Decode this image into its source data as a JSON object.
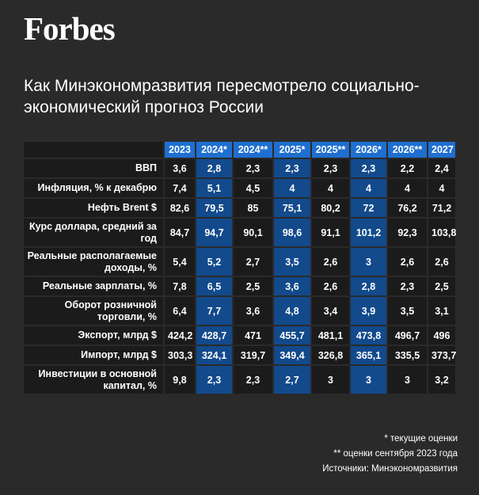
{
  "brand": {
    "logo": "Forbes"
  },
  "title": "Как Минэкономразвития пересмотрело социально-экономический прогноз России",
  "chart_data": {
    "type": "table",
    "columns": [
      "2023",
      "2024*",
      "2024**",
      "2025*",
      "2025**",
      "2026*",
      "2026**",
      "2027"
    ],
    "highlight_columns": [
      1,
      3,
      5
    ],
    "colors": {
      "header": "#1f6fd0",
      "highlight": "#124a8c",
      "cell": "#1b1b1b",
      "background": "#2a2a2a"
    },
    "rows": [
      {
        "label": "ВВП",
        "values": [
          "3,6",
          "2,8",
          "2,3",
          "2,3",
          "2,3",
          "2,3",
          "2,2",
          "2,4"
        ]
      },
      {
        "label": "Инфляция, % к декабрю",
        "values": [
          "7,4",
          "5,1",
          "4,5",
          "4",
          "4",
          "4",
          "4",
          "4"
        ]
      },
      {
        "label": "Нефть Brent $",
        "values": [
          "82,6",
          "79,5",
          "85",
          "75,1",
          "80,2",
          "72",
          "76,2",
          "71,2"
        ]
      },
      {
        "label": "Курс доллара, средний за год",
        "values": [
          "84,7",
          "94,7",
          "90,1",
          "98,6",
          "91,1",
          "101,2",
          "92,3",
          "103,8"
        ]
      },
      {
        "label": "Реальные располагаемые доходы, %",
        "values": [
          "5,4",
          "5,2",
          "2,7",
          "3,5",
          "2,6",
          "3",
          "2,6",
          "2,6"
        ]
      },
      {
        "label": "Реальные зарплаты, %",
        "values": [
          "7,8",
          "6,5",
          "2,5",
          "3,6",
          "2,6",
          "2,8",
          "2,3",
          "2,5"
        ]
      },
      {
        "label": "Оборот розничной торговли, %",
        "values": [
          "6,4",
          "7,7",
          "3,6",
          "4,8",
          "3,4",
          "3,9",
          "3,5",
          "3,1"
        ]
      },
      {
        "label": "Экспорт, млрд $",
        "values": [
          "424,2",
          "428,7",
          "471",
          "455,7",
          "481,1",
          "473,8",
          "496,7",
          "496"
        ]
      },
      {
        "label": "Импорт, млрд $",
        "values": [
          "303,3",
          "324,1",
          "319,7",
          "349,4",
          "326,8",
          "365,1",
          "335,5",
          "373,7"
        ]
      },
      {
        "label": "Инвестиции в основной капитал, %",
        "values": [
          "9,8",
          "2,3",
          "2,3",
          "2,7",
          "3",
          "3",
          "3",
          "3,2"
        ]
      }
    ]
  },
  "notes": {
    "current": "* текущие оценки",
    "september": "** оценки сентября 2023 года",
    "source": "Источники: Минэкономразвития"
  }
}
